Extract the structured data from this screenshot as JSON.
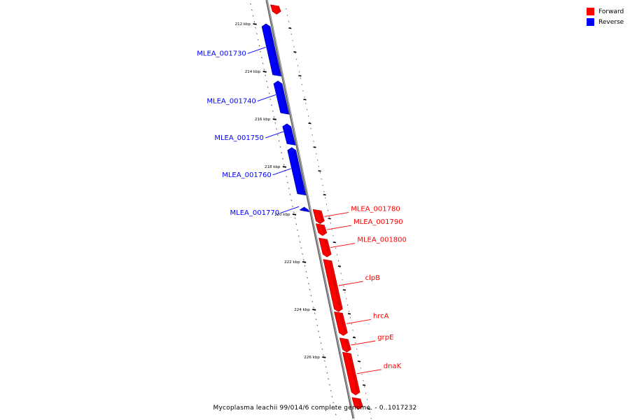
{
  "title": "Mycoplasma leachii 99/014/6 complete genome. - 0..1017232",
  "legend": [
    {
      "label": "Forward",
      "color": "#ff0000"
    },
    {
      "label": "Reverse",
      "color": "#0000ff"
    }
  ],
  "colors": {
    "forward": "#ff0000",
    "reverse": "#0000ff",
    "backbone": "#888888"
  },
  "ticks": [
    {
      "label": "212 kbp",
      "kbp": 212
    },
    {
      "label": "214 kbp",
      "kbp": 214
    },
    {
      "label": "216 kbp",
      "kbp": 216
    },
    {
      "label": "218 kbp",
      "kbp": 218
    },
    {
      "label": "220 kbp",
      "kbp": 220
    },
    {
      "label": "222 kbp",
      "kbp": 222
    },
    {
      "label": "224 kbp",
      "kbp": 224
    },
    {
      "label": "226 kbp",
      "kbp": 226
    }
  ],
  "genes": [
    {
      "name": "",
      "strand": "forward",
      "start_kbp": 211.2,
      "end_kbp": 211.6
    },
    {
      "name": "MLEA_001730",
      "strand": "reverse",
      "start_kbp": 212.0,
      "end_kbp": 214.2
    },
    {
      "name": "MLEA_001740",
      "strand": "reverse",
      "start_kbp": 214.4,
      "end_kbp": 215.8
    },
    {
      "name": "MLEA_001750",
      "strand": "reverse",
      "start_kbp": 216.2,
      "end_kbp": 217.1
    },
    {
      "name": "MLEA_001760",
      "strand": "reverse",
      "start_kbp": 217.2,
      "end_kbp": 219.2
    },
    {
      "name": "MLEA_001770",
      "strand": "reverse",
      "start_kbp": 219.7,
      "end_kbp": 219.9
    },
    {
      "name": "MLEA_001780",
      "strand": "forward",
      "start_kbp": 219.8,
      "end_kbp": 220.4
    },
    {
      "name": "MLEA_001790",
      "strand": "forward",
      "start_kbp": 220.4,
      "end_kbp": 220.9
    },
    {
      "name": "MLEA_001800",
      "strand": "forward",
      "start_kbp": 221.0,
      "end_kbp": 221.8
    },
    {
      "name": "clpB",
      "strand": "forward",
      "start_kbp": 221.9,
      "end_kbp": 224.1
    },
    {
      "name": "hrcA",
      "strand": "forward",
      "start_kbp": 224.1,
      "end_kbp": 225.1
    },
    {
      "name": "grpE",
      "strand": "forward",
      "start_kbp": 225.2,
      "end_kbp": 225.8
    },
    {
      "name": "dnaK",
      "strand": "forward",
      "start_kbp": 225.8,
      "end_kbp": 227.6
    },
    {
      "name": "",
      "strand": "forward",
      "start_kbp": 227.7,
      "end_kbp": 228.2
    }
  ]
}
